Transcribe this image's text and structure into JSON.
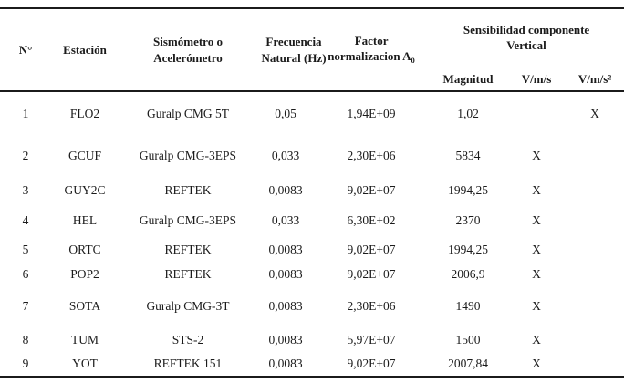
{
  "table": {
    "headers": {
      "num": "N°",
      "station": "Estación",
      "seismometer": "Sismómetro o Acelerómetro",
      "frequency": "Frecuencia Natural (Hz)",
      "factor_line1": "Factor",
      "factor_line2": "normalizacion A",
      "factor_subscript": "0",
      "sensitivity_group": "Sensibilidad componente Vertical",
      "magnitude": "Magnitud",
      "v_per_m_s": "V/m/s",
      "v_per_m_s2": "V/m/s²"
    },
    "rows": [
      {
        "n": "1",
        "station": "FLO2",
        "seismometer": "Guralp CMG 5T",
        "frequency": "0,05",
        "factor": "1,94E+09",
        "magnitude": "1,02",
        "v_per_m_s": "",
        "v_per_m_s2": "X"
      },
      {
        "n": "2",
        "station": "GCUF",
        "seismometer": "Guralp CMG-3EPS",
        "frequency": "0,033",
        "factor": "2,30E+06",
        "magnitude": "5834",
        "v_per_m_s": "X",
        "v_per_m_s2": ""
      },
      {
        "n": "3",
        "station": "GUY2C",
        "seismometer": "REFTEK",
        "frequency": "0,0083",
        "factor": "9,02E+07",
        "magnitude": "1994,25",
        "v_per_m_s": "X",
        "v_per_m_s2": ""
      },
      {
        "n": "4",
        "station": "HEL",
        "seismometer": "Guralp CMG-3EPS",
        "frequency": "0,033",
        "factor": "6,30E+02",
        "magnitude": "2370",
        "v_per_m_s": "X",
        "v_per_m_s2": ""
      },
      {
        "n": "5",
        "station": "ORTC",
        "seismometer": "REFTEK",
        "frequency": "0,0083",
        "factor": "9,02E+07",
        "magnitude": "1994,25",
        "v_per_m_s": "X",
        "v_per_m_s2": ""
      },
      {
        "n": "6",
        "station": "POP2",
        "seismometer": "REFTEK",
        "frequency": "0,0083",
        "factor": "9,02E+07",
        "magnitude": "2006,9",
        "v_per_m_s": "X",
        "v_per_m_s2": ""
      },
      {
        "n": "7",
        "station": "SOTA",
        "seismometer": "Guralp CMG-3T",
        "frequency": "0,0083",
        "factor": "2,30E+06",
        "magnitude": "1490",
        "v_per_m_s": "X",
        "v_per_m_s2": ""
      },
      {
        "n": "8",
        "station": "TUM",
        "seismometer": "STS-2",
        "frequency": "0,0083",
        "factor": "5,97E+07",
        "magnitude": "1500",
        "v_per_m_s": "X",
        "v_per_m_s2": ""
      },
      {
        "n": "9",
        "station": "YOT",
        "seismometer": "REFTEK 151",
        "frequency": "0,0083",
        "factor": "9,02E+07",
        "magnitude": "2007,84",
        "v_per_m_s": "X",
        "v_per_m_s2": ""
      }
    ]
  },
  "colors": {
    "text": "#1b1b1b",
    "rule": "#1b1b1b",
    "background": "#ffffff"
  }
}
